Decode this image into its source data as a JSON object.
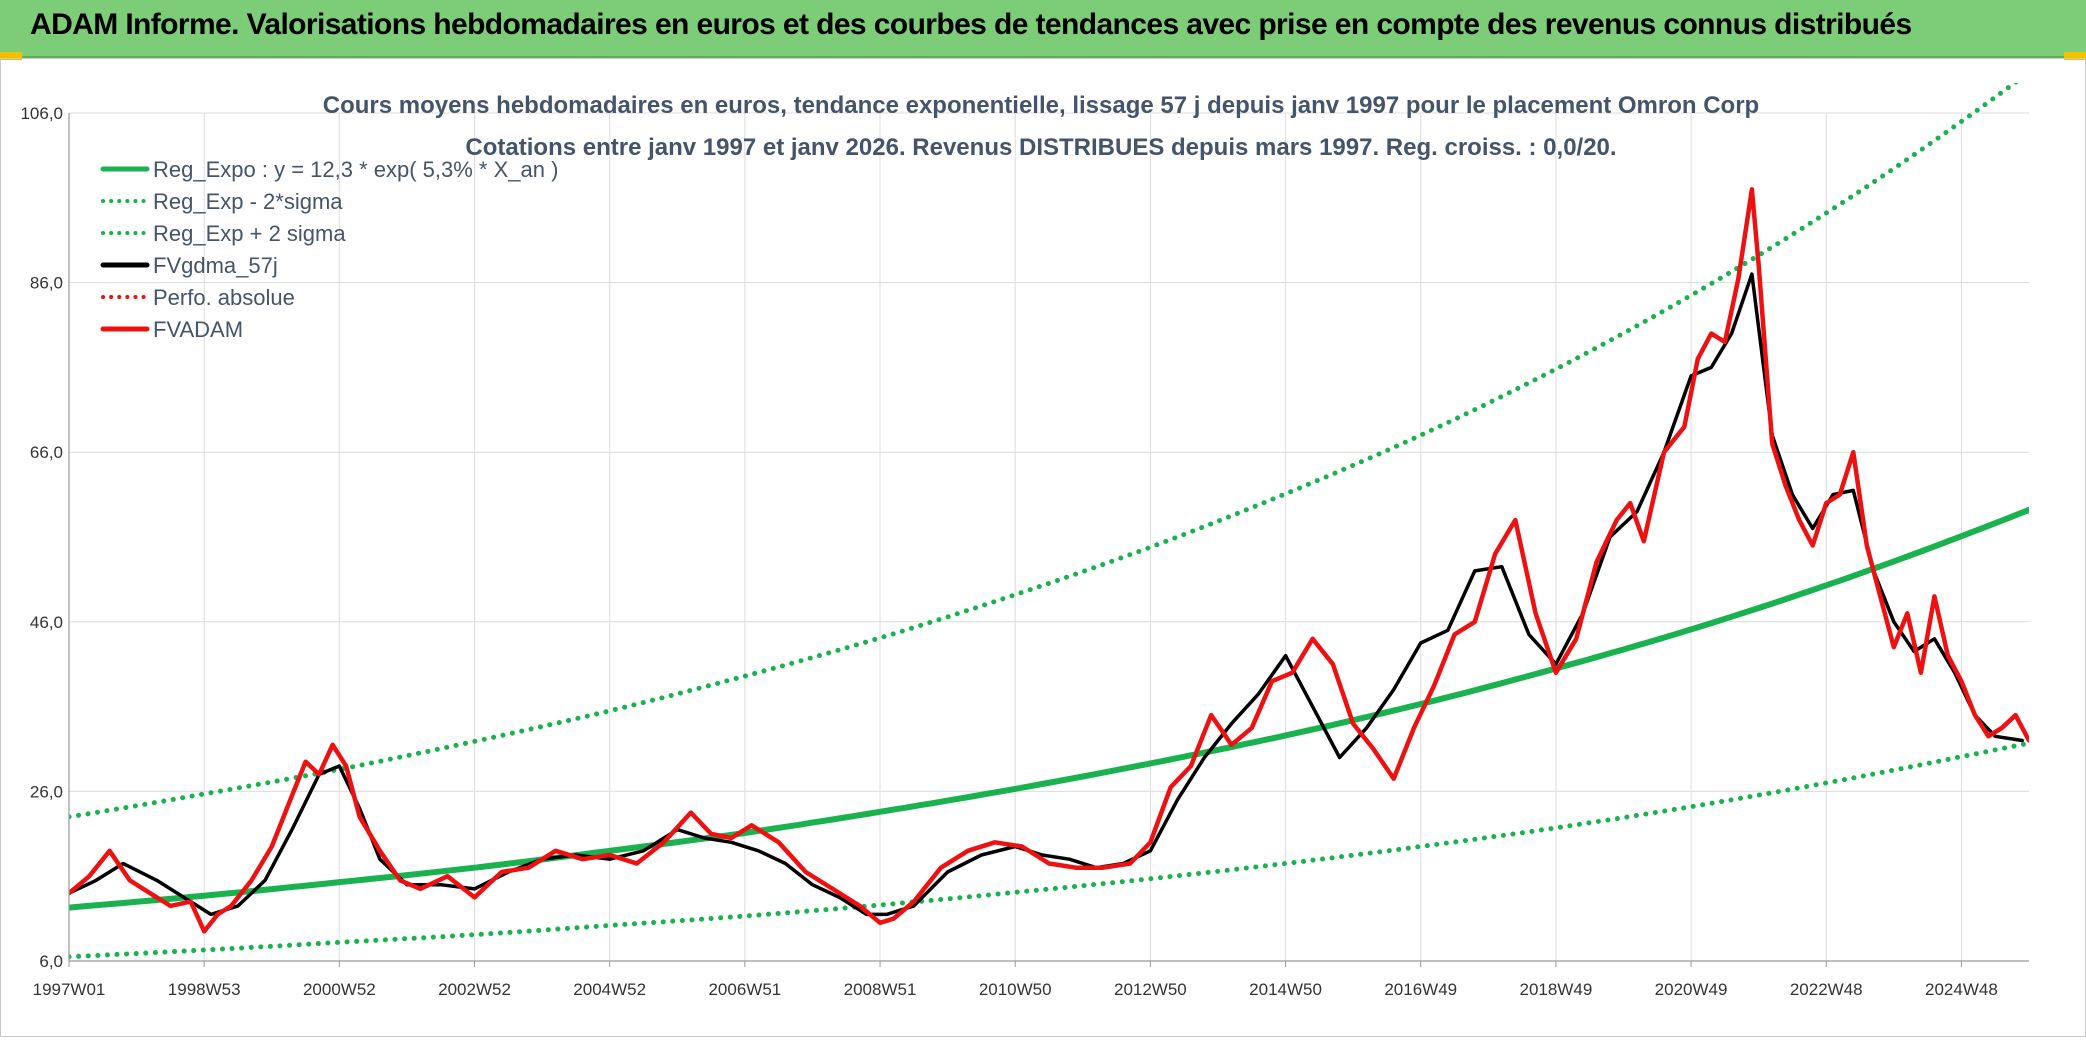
{
  "banner": {
    "title": "ADAM Informe. Valorisations hebdomadaires en euros et des courbes de tendances avec prise en compte des revenus connus distribués"
  },
  "colors": {
    "banner_bg": "#7dcc78",
    "reg_green": "#1ab14f",
    "black_line": "#000000",
    "red_line": "#ee1111",
    "grid": "#dcdcdc",
    "text": "#44546a"
  },
  "chart_data": {
    "type": "line",
    "title": "Cours moyens hebdomadaires en euros, tendance exponentielle, lissage 57 j depuis janv 1997 pour le placement Omron Corp",
    "subtitle": "Cotations entre janv 1997 et janv 2026. Revenus DISTRIBUES depuis mars 1997. Reg. croiss. : 0,0/20.",
    "xlabel": "",
    "ylabel": "",
    "ylim": [
      6,
      106
    ],
    "xlim": [
      1997.0,
      2026.0
    ],
    "y_ticks": [
      "106,0",
      "86,0",
      "66,0",
      "46,0",
      "26,0",
      "6,0"
    ],
    "y_tick_values": [
      106,
      86,
      66,
      46,
      26,
      6
    ],
    "x_ticks": [
      "1997W01",
      "1998W53",
      "2000W52",
      "2002W52",
      "2004W52",
      "2006W51",
      "2008W51",
      "2010W50",
      "2012W50",
      "2014W50",
      "2016W49",
      "2018W49",
      "2020W49",
      "2022W48",
      "2024W48"
    ],
    "x_tick_values": [
      1997.0,
      1999.0,
      2001.0,
      2003.0,
      2005.0,
      2007.0,
      2009.0,
      2011.0,
      2013.0,
      2015.0,
      2017.0,
      2019.0,
      2021.0,
      2023.0,
      2025.0
    ],
    "grid": true,
    "legend_position": "top-left",
    "legend": [
      {
        "label": "Reg_Expo : y = 12,3 * exp( 5,3% *  X_an )",
        "style": "solid",
        "color": "#1ab14f"
      },
      {
        "label": "Reg_Exp - 2*sigma",
        "style": "dotted",
        "color": "#1ab14f"
      },
      {
        "label": "Reg_Exp + 2 sigma",
        "style": "dotted",
        "color": "#1ab14f"
      },
      {
        "label": "FVgdma_57j",
        "style": "solid",
        "color": "#000000"
      },
      {
        "label": "Perfo. absolue",
        "style": "dotted",
        "color": "#ee1111"
      },
      {
        "label": "FVADAM",
        "style": "solid",
        "color": "#ee1111"
      }
    ],
    "series": [
      {
        "name": "Reg_Expo",
        "x": [
          1997.0,
          1999.0,
          2001.0,
          2003.0,
          2005.0,
          2007.0,
          2009.0,
          2011.0,
          2013.0,
          2015.0,
          2017.0,
          2019.0,
          2021.0,
          2023.0,
          2025.0,
          2026.0
        ],
        "values": [
          12.3,
          13.7,
          15.3,
          17.0,
          19.0,
          21.1,
          23.6,
          26.3,
          29.3,
          32.6,
          36.3,
          40.5,
          45.1,
          50.3,
          56.1,
          59.2
        ]
      },
      {
        "name": "Reg_Exp - 2*sigma",
        "x": [
          1997.0,
          1999.0,
          2001.0,
          2003.0,
          2005.0,
          2007.0,
          2009.0,
          2011.0,
          2013.0,
          2015.0,
          2017.0,
          2019.0,
          2021.0,
          2023.0,
          2025.0,
          2026.0
        ],
        "values": [
          6.5,
          7.3,
          8.2,
          9.1,
          10.2,
          11.3,
          12.6,
          14.1,
          15.7,
          17.5,
          19.5,
          21.7,
          24.2,
          27.0,
          30.1,
          31.7
        ]
      },
      {
        "name": "Reg_Exp + 2 sigma",
        "x": [
          1997.0,
          1999.0,
          2001.0,
          2003.0,
          2005.0,
          2007.0,
          2009.0,
          2011.0,
          2013.0,
          2015.0,
          2017.0,
          2019.0,
          2021.0,
          2023.0,
          2025.0,
          2026.0
        ],
        "values": [
          23.0,
          25.7,
          28.6,
          31.9,
          35.5,
          39.6,
          44.1,
          49.2,
          54.8,
          61.1,
          68.0,
          75.8,
          84.5,
          94.2,
          105.0,
          110.8
        ]
      },
      {
        "name": "FVgdma_57j",
        "x": [
          1997.0,
          1997.4,
          1997.8,
          1998.3,
          1998.7,
          1999.1,
          1999.5,
          1999.9,
          2000.3,
          2000.7,
          2001.0,
          2001.3,
          2001.6,
          2002.0,
          2002.5,
          2003.0,
          2003.5,
          2004.0,
          2004.5,
          2005.0,
          2005.5,
          2006.0,
          2006.4,
          2006.8,
          2007.2,
          2007.6,
          2008.0,
          2008.4,
          2008.8,
          2009.1,
          2009.5,
          2010.0,
          2010.5,
          2011.0,
          2011.4,
          2011.8,
          2012.2,
          2012.6,
          2013.0,
          2013.4,
          2013.8,
          2014.2,
          2014.6,
          2015.0,
          2015.4,
          2015.8,
          2016.2,
          2016.6,
          2017.0,
          2017.4,
          2017.8,
          2018.2,
          2018.6,
          2019.0,
          2019.4,
          2019.8,
          2020.2,
          2020.6,
          2021.0,
          2021.3,
          2021.6,
          2021.9,
          2022.2,
          2022.5,
          2022.8,
          2023.1,
          2023.4,
          2023.7,
          2024.0,
          2024.3,
          2024.6,
          2024.9,
          2025.2,
          2025.5,
          2025.9
        ],
        "values": [
          14.0,
          15.5,
          17.5,
          15.5,
          13.5,
          11.5,
          12.5,
          15.5,
          21.5,
          28.0,
          29.0,
          24.0,
          18.0,
          15.0,
          15.0,
          14.5,
          16.5,
          18.0,
          18.5,
          18.0,
          19.0,
          21.5,
          20.5,
          20.0,
          19.0,
          17.5,
          15.0,
          13.5,
          11.5,
          11.5,
          12.5,
          16.5,
          18.5,
          19.5,
          18.5,
          18.0,
          17.0,
          17.5,
          19.0,
          25.0,
          30.0,
          34.0,
          37.5,
          42.0,
          36.0,
          30.0,
          33.5,
          38.0,
          43.5,
          45.0,
          52.0,
          52.5,
          44.5,
          41.0,
          47.0,
          56.0,
          59.0,
          66.0,
          75.0,
          76.0,
          80.0,
          87.0,
          68.0,
          61.0,
          57.0,
          61.0,
          61.5,
          52.0,
          46.0,
          42.5,
          44.0,
          40.0,
          35.0,
          32.5,
          32.0
        ]
      },
      {
        "name": "FVADAM",
        "x": [
          1997.0,
          1997.3,
          1997.6,
          1997.9,
          1998.2,
          1998.5,
          1998.8,
          1999.0,
          1999.2,
          1999.4,
          1999.7,
          2000.0,
          2000.3,
          2000.5,
          2000.7,
          2000.9,
          2001.1,
          2001.3,
          2001.6,
          2001.9,
          2002.2,
          2002.6,
          2003.0,
          2003.4,
          2003.8,
          2004.2,
          2004.6,
          2005.0,
          2005.4,
          2005.8,
          2006.2,
          2006.5,
          2006.8,
          2007.1,
          2007.5,
          2007.9,
          2008.3,
          2008.7,
          2009.0,
          2009.2,
          2009.5,
          2009.9,
          2010.3,
          2010.7,
          2011.1,
          2011.5,
          2011.9,
          2012.3,
          2012.7,
          2013.0,
          2013.3,
          2013.6,
          2013.9,
          2014.2,
          2014.5,
          2014.8,
          2015.1,
          2015.4,
          2015.7,
          2016.0,
          2016.3,
          2016.6,
          2016.9,
          2017.2,
          2017.5,
          2017.8,
          2018.1,
          2018.4,
          2018.7,
          2019.0,
          2019.3,
          2019.6,
          2019.9,
          2020.1,
          2020.3,
          2020.6,
          2020.9,
          2021.1,
          2021.3,
          2021.5,
          2021.7,
          2021.9,
          2022.0,
          2022.2,
          2022.4,
          2022.6,
          2022.8,
          2023.0,
          2023.2,
          2023.4,
          2023.6,
          2023.8,
          2024.0,
          2024.2,
          2024.4,
          2024.6,
          2024.8,
          2025.0,
          2025.2,
          2025.4,
          2025.6,
          2025.8,
          2026.0
        ],
        "values": [
          14.0,
          16.0,
          19.0,
          15.5,
          14.0,
          12.5,
          13.0,
          9.5,
          11.5,
          12.5,
          15.5,
          19.5,
          25.5,
          29.5,
          28.0,
          31.5,
          29.0,
          23.0,
          19.0,
          15.5,
          14.5,
          16.0,
          13.5,
          16.5,
          17.0,
          19.0,
          18.0,
          18.5,
          17.5,
          20.0,
          23.5,
          21.0,
          20.5,
          22.0,
          20.0,
          16.5,
          14.5,
          12.5,
          10.5,
          11.0,
          13.0,
          17.0,
          19.0,
          20.0,
          19.5,
          17.5,
          17.0,
          17.0,
          17.5,
          20.0,
          26.5,
          29.0,
          35.0,
          31.5,
          33.5,
          39.0,
          40.0,
          44.0,
          41.0,
          34.0,
          31.0,
          27.5,
          33.5,
          38.5,
          44.5,
          46.0,
          54.0,
          58.0,
          47.0,
          40.0,
          44.0,
          53.0,
          58.0,
          60.0,
          55.5,
          66.0,
          69.0,
          77.0,
          80.0,
          79.0,
          86.5,
          97.0,
          88.0,
          67.0,
          62.0,
          58.0,
          55.0,
          60.0,
          61.0,
          66.0,
          55.0,
          49.0,
          43.0,
          47.0,
          40.0,
          49.0,
          42.0,
          39.0,
          35.0,
          32.5,
          33.5,
          35.0,
          32.0
        ]
      }
    ]
  }
}
